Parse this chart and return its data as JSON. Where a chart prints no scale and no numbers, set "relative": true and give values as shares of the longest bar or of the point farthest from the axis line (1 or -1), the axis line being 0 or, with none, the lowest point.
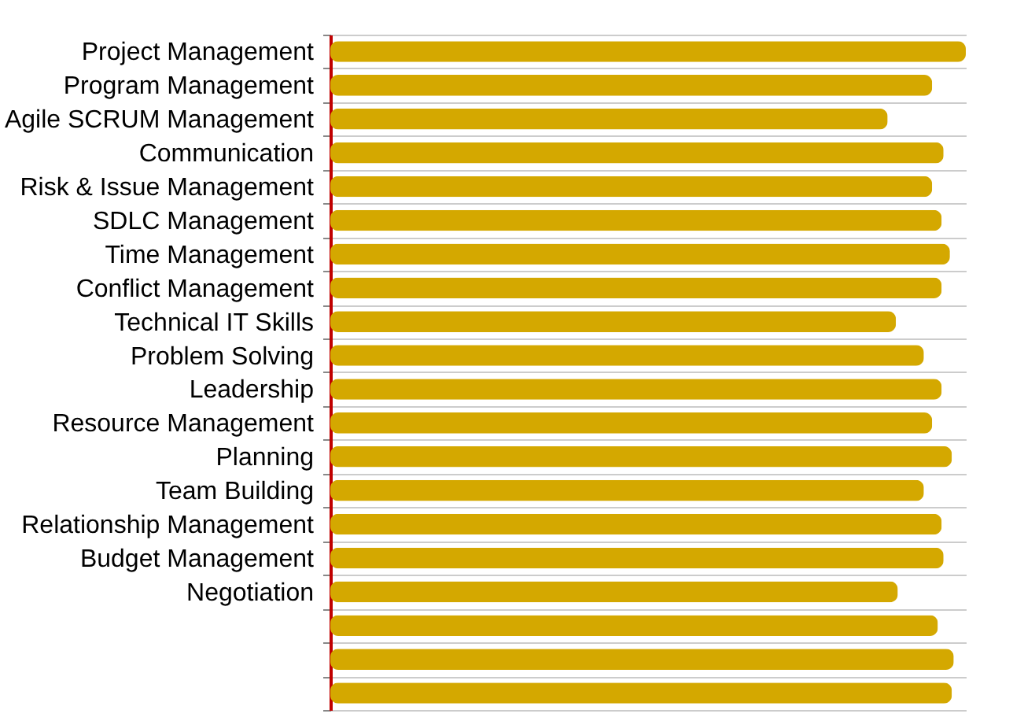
{
  "chart_data": {
    "type": "bar",
    "orientation": "horizontal",
    "relative": true,
    "grid": "y",
    "color": "#d4a800",
    "categories": [
      "Project Management",
      "Program Management",
      "Agile SCRUM Management",
      "Communication",
      "Risk & Issue Management",
      "SDLC Management",
      "Time Management",
      "Conflict Management",
      "Technical IT Skills",
      "Problem Solving",
      "Leadership",
      "Resource Management",
      "Planning",
      "Team Building",
      "Relationship Management",
      "Budget Management",
      "Negotiation",
      null,
      null,
      null
    ],
    "values": [
      1,
      0.947,
      0.877,
      0.965,
      0.947,
      0.962,
      0.975,
      0.962,
      0.89,
      0.934,
      0.962,
      0.947,
      0.978,
      0.934,
      0.962,
      0.965,
      0.893,
      0.956,
      0.981,
      0.978
    ]
  }
}
